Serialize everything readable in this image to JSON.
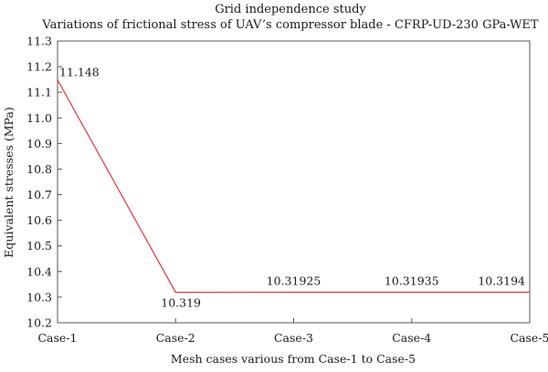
{
  "chart_data": {
    "type": "line",
    "title": "Grid independence study",
    "subtitle": "Variations of frictional stress of UAV’s compressor blade - CFRP-UD-230 GPa-WET",
    "xlabel": "Mesh cases various from Case-1 to Case-5",
    "ylabel": "Equivalent stresses (MPa)",
    "categories": [
      "Case-1",
      "Case-2",
      "Case-3",
      "Case-4",
      "Case-5"
    ],
    "series": [
      {
        "values": [
          11.148,
          10.319,
          10.31925,
          10.31935,
          10.3194
        ],
        "color": "#e8343a"
      }
    ],
    "data_labels": [
      "11.148",
      "10.319",
      "10.31925",
      "10.31935",
      "10.3194"
    ],
    "ylim": [
      10.2,
      11.3
    ],
    "yticks": [
      "10.2",
      "10.3",
      "10.4",
      "10.5",
      "10.6",
      "10.7",
      "10.8",
      "10.9",
      "11.0",
      "11.1",
      "11.2",
      "11.3"
    ],
    "grid": false,
    "legend": "none"
  }
}
